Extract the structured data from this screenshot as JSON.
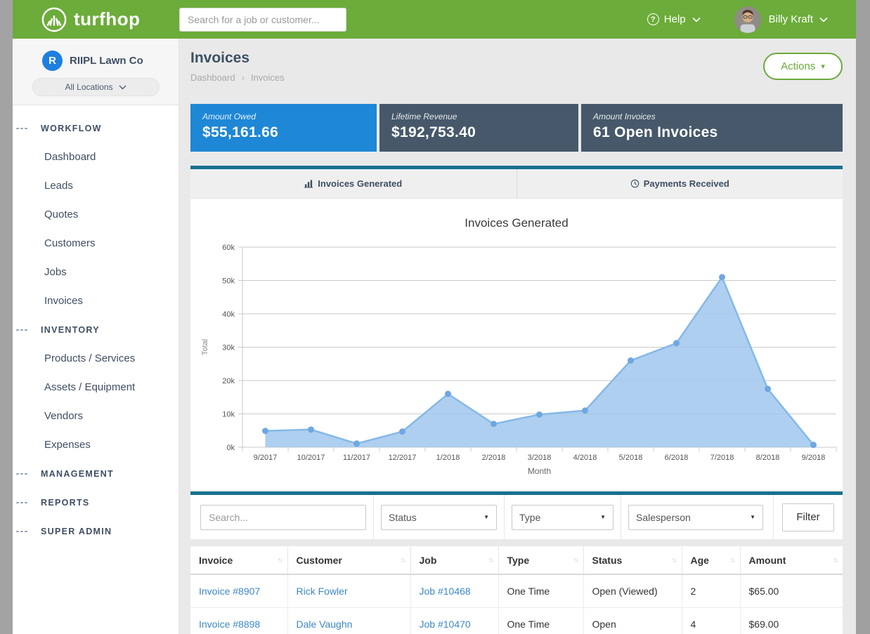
{
  "header": {
    "brand": "turfhop",
    "search_placeholder": "Search for a job or customer...",
    "help_label": "Help",
    "user_name": "Billy Kraft"
  },
  "sidebar": {
    "company_name": "RIIPL Lawn Co",
    "company_initial": "R",
    "location_selector": "All Locations",
    "sections": [
      {
        "label": "WORKFLOW",
        "items": [
          "Dashboard",
          "Leads",
          "Quotes",
          "Customers",
          "Jobs",
          "Invoices"
        ]
      },
      {
        "label": "INVENTORY",
        "items": [
          "Products / Services",
          "Assets / Equipment",
          "Vendors",
          "Expenses"
        ]
      },
      {
        "label": "MANAGEMENT",
        "items": []
      },
      {
        "label": "REPORTS",
        "items": []
      },
      {
        "label": "SUPER ADMIN",
        "items": []
      }
    ]
  },
  "page": {
    "title": "Invoices",
    "breadcrumb": [
      "Dashboard",
      "Invoices"
    ],
    "actions_button": "Actions"
  },
  "stats": [
    {
      "label": "Amount Owed",
      "value": "$55,161.66",
      "bg": "#1e87d6"
    },
    {
      "label": "Lifetime Revenue",
      "value": "$192,753.40",
      "bg": "#46586a"
    },
    {
      "label": "Amount Invoices",
      "value": "61 Open Invoices",
      "bg": "#46586a"
    }
  ],
  "tabs": [
    {
      "label": "Invoices Generated",
      "icon": "bar-chart-icon",
      "active": true
    },
    {
      "label": "Payments Received",
      "icon": "clock-icon",
      "active": false
    }
  ],
  "chart_data": {
    "type": "area",
    "title": "Invoices Generated",
    "xlabel": "Month",
    "ylabel": "Total",
    "categories": [
      "9/2017",
      "10/2017",
      "11/2017",
      "12/2017",
      "1/2018",
      "2/2018",
      "3/2018",
      "4/2018",
      "5/2018",
      "6/2018",
      "7/2018",
      "8/2018",
      "9/2018"
    ],
    "values": [
      4900,
      5300,
      1100,
      4700,
      16000,
      7000,
      9800,
      11000,
      26000,
      31200,
      51000,
      17500,
      700
    ],
    "ylim": [
      0,
      60000
    ],
    "ytick_step": 10000,
    "ytick_suffix": "k",
    "grid": true,
    "legend": false,
    "fill_color": "#a0c7ec",
    "line_color": "#85b8e8",
    "point_color": "#6fa7e0"
  },
  "filters": {
    "search_placeholder": "Search...",
    "selects": [
      "Status",
      "Type",
      "Salesperson"
    ],
    "button": "Filter"
  },
  "table": {
    "columns": [
      {
        "label": "Invoice",
        "key": "invoice",
        "link": true
      },
      {
        "label": "Customer",
        "key": "customer",
        "link": true
      },
      {
        "label": "Job",
        "key": "job",
        "link": true
      },
      {
        "label": "Type",
        "key": "type",
        "link": false
      },
      {
        "label": "Status",
        "key": "status",
        "link": false
      },
      {
        "label": "Age",
        "key": "age",
        "link": false
      },
      {
        "label": "Amount",
        "key": "amount",
        "link": false
      }
    ],
    "rows": [
      {
        "invoice": "Invoice #8907",
        "customer": "Rick Fowler",
        "job": "Job #10468",
        "type": "One Time",
        "status": "Open (Viewed)",
        "age": "2",
        "amount": "$65.00"
      },
      {
        "invoice": "Invoice #8898",
        "customer": "Dale Vaughn",
        "job": "Job #10470",
        "type": "One Time",
        "status": "Open",
        "age": "4",
        "amount": "$69.00"
      }
    ]
  },
  "icons": {
    "help_glyph": "?",
    "caret_down": "▾",
    "select_caret": "▼",
    "sort_glyph": "↑↓",
    "breadcrumb_chevron": "›"
  },
  "colors": {
    "brand_green": "#6cac3a",
    "accent_teal": "#17718f",
    "stat_blue": "#1e87d6",
    "stat_slate": "#46586a",
    "link_blue": "#3d87c9"
  }
}
